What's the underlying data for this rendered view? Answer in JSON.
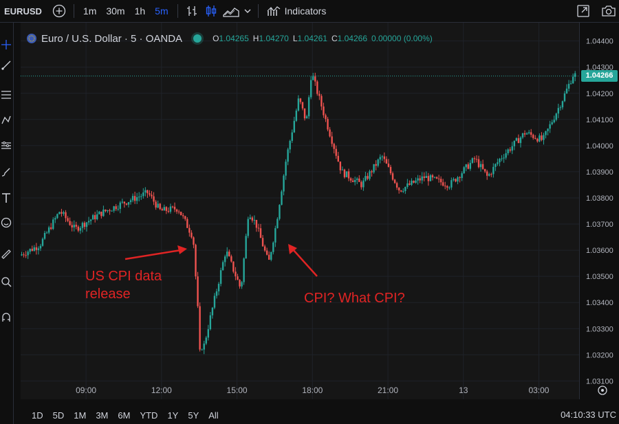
{
  "toolbar": {
    "symbol": "EURUSD",
    "timeframes": [
      "1m",
      "30m",
      "1h",
      "5m"
    ],
    "active_timeframe": "5m",
    "indicators_label": "Indicators"
  },
  "legend": {
    "title": "Euro / U.S. Dollar · 5 · OANDA",
    "ohlc": [
      {
        "k": "O",
        "v": "1.04265"
      },
      {
        "k": "H",
        "v": "1.04270"
      },
      {
        "k": "L",
        "v": "1.04261"
      },
      {
        "k": "C",
        "v": "1.04266"
      }
    ],
    "change": "0.00000 (0.00%)"
  },
  "price_badge": "1.04266",
  "annotations": {
    "cpi_release": "US CPI data\nrelease",
    "what_cpi": "CPI? What CPI?"
  },
  "colors": {
    "up": "#26a69a",
    "down": "#ef5350",
    "annotation": "#e02424",
    "accent": "#2962ff"
  },
  "bottom": {
    "ranges": [
      "1D",
      "5D",
      "1M",
      "3M",
      "6M",
      "YTD",
      "1Y",
      "5Y",
      "All"
    ],
    "clock": "04:10:33 UTC"
  },
  "chart_data": {
    "type": "candlestick",
    "title": "Euro / U.S. Dollar · 5 · OANDA",
    "x_ticks": [
      "09:00",
      "12:00",
      "15:00",
      "18:00",
      "21:00",
      "13",
      "03:00"
    ],
    "y_ticks": [
      1.031,
      1.032,
      1.033,
      1.034,
      1.035,
      1.036,
      1.037,
      1.038,
      1.039,
      1.04,
      1.041,
      1.042,
      1.043,
      1.044
    ],
    "y_tick_labels": [
      "1.03100",
      "1.03200",
      "1.03300",
      "1.03400",
      "1.03500",
      "1.03600",
      "1.03700",
      "1.03800",
      "1.03900",
      "1.04000",
      "1.04100",
      "1.04200",
      "1.04300",
      "1.04400"
    ],
    "ylim": [
      1.0303,
      1.0447
    ],
    "x_range_hours": [
      6.4,
      28.6
    ],
    "x_tick_hours": [
      9,
      12,
      15,
      18,
      21,
      24,
      27
    ],
    "last_price": 1.04266,
    "path_hours": [
      6.4,
      7.2,
      8.0,
      8.6,
      9.6,
      10.5,
      11.5,
      12.0,
      12.7,
      13.3,
      13.5,
      13.6,
      14.0,
      14.6,
      15.2,
      15.5,
      15.8,
      16.3,
      16.6,
      17.0,
      17.5,
      17.8,
      18.0,
      18.5,
      19.2,
      20.0,
      20.8,
      21.5,
      22.5,
      23.5,
      24.5,
      25.0,
      25.5,
      26.5,
      27.2,
      28.0,
      28.4
    ],
    "path_values": [
      1.0358,
      1.0362,
      1.0375,
      1.0368,
      1.0374,
      1.0378,
      1.0382,
      1.0375,
      1.0376,
      1.0365,
      1.0335,
      1.0318,
      1.0335,
      1.036,
      1.0345,
      1.0375,
      1.037,
      1.0355,
      1.037,
      1.0395,
      1.0418,
      1.0409,
      1.0428,
      1.0412,
      1.039,
      1.0385,
      1.0396,
      1.0383,
      1.0388,
      1.0385,
      1.0395,
      1.0388,
      1.0395,
      1.0405,
      1.0402,
      1.0418,
      1.0427
    ]
  }
}
